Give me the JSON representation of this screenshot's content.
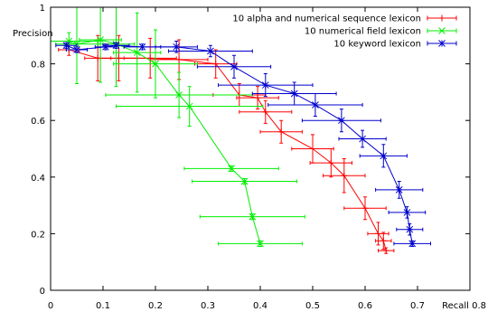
{
  "chart_data": {
    "type": "line",
    "xlabel": "Recall",
    "ylabel": "Precision",
    "xlim": [
      0,
      0.8
    ],
    "ylim": [
      0,
      1
    ],
    "xticks": [
      0,
      0.1,
      0.2,
      0.3,
      0.4,
      0.5,
      0.6,
      0.7,
      0.8
    ],
    "yticks": [
      0,
      0.2,
      0.4,
      0.6,
      0.8,
      1
    ],
    "xtick_labels": [
      "0",
      "0.1",
      "0.2",
      "0.3",
      "0.4",
      "0.5",
      "0.6",
      "0.7",
      "Recall 0.8"
    ],
    "ytick_labels": [
      "0",
      "0.2",
      "0.4",
      "0.6",
      "0.8",
      "1"
    ],
    "grid": false,
    "legend_position": "top-right",
    "series": [
      {
        "name": "10 alpha and numerical sequence lexicon",
        "color": "#ff0000",
        "marker": "plus",
        "points": [
          {
            "x": 0.035,
            "y": 0.85,
            "xerr": 0.02,
            "yerr": 0.02
          },
          {
            "x": 0.09,
            "y": 0.82,
            "xerr": 0.025,
            "yerr": 0.08
          },
          {
            "x": 0.13,
            "y": 0.82,
            "xerr": 0.035,
            "yerr": 0.08
          },
          {
            "x": 0.19,
            "y": 0.82,
            "xerr": 0.05,
            "yerr": 0.07
          },
          {
            "x": 0.245,
            "y": 0.815,
            "xerr": 0.055,
            "yerr": 0.07
          },
          {
            "x": 0.315,
            "y": 0.8,
            "xerr": 0.04,
            "yerr": 0.05
          },
          {
            "x": 0.36,
            "y": 0.69,
            "xerr": 0.05,
            "yerr": 0.04
          },
          {
            "x": 0.395,
            "y": 0.68,
            "xerr": 0.04,
            "yerr": 0.04
          },
          {
            "x": 0.41,
            "y": 0.63,
            "xerr": 0.05,
            "yerr": 0.04
          },
          {
            "x": 0.44,
            "y": 0.56,
            "xerr": 0.04,
            "yerr": 0.04
          },
          {
            "x": 0.5,
            "y": 0.5,
            "xerr": 0.04,
            "yerr": 0.05
          },
          {
            "x": 0.535,
            "y": 0.45,
            "xerr": 0.04,
            "yerr": 0.05
          },
          {
            "x": 0.56,
            "y": 0.405,
            "xerr": 0.04,
            "yerr": 0.06
          },
          {
            "x": 0.6,
            "y": 0.29,
            "xerr": 0.04,
            "yerr": 0.04
          },
          {
            "x": 0.625,
            "y": 0.2,
            "xerr": 0.02,
            "yerr": 0.04
          },
          {
            "x": 0.635,
            "y": 0.175,
            "xerr": 0.015,
            "yerr": 0.03
          },
          {
            "x": 0.64,
            "y": 0.14,
            "xerr": 0.015,
            "yerr": 0.01
          }
        ]
      },
      {
        "name": "10 numerical field lexicon",
        "color": "#00ee00",
        "marker": "cross",
        "points": [
          {
            "x": 0.035,
            "y": 0.88,
            "xerr": 0.06,
            "yerr": 0.03
          },
          {
            "x": 0.05,
            "y": 0.87,
            "xerr": 0.04,
            "yerr": 0.14
          },
          {
            "x": 0.095,
            "y": 0.885,
            "xerr": 0.04,
            "yerr": 0.15
          },
          {
            "x": 0.125,
            "y": 0.87,
            "xerr": 0.035,
            "yerr": 0.15
          },
          {
            "x": 0.165,
            "y": 0.84,
            "xerr": 0.045,
            "yerr": 0.14
          },
          {
            "x": 0.2,
            "y": 0.8,
            "xerr": 0.08,
            "yerr": 0.12
          },
          {
            "x": 0.245,
            "y": 0.69,
            "xerr": 0.14,
            "yerr": 0.08
          },
          {
            "x": 0.265,
            "y": 0.65,
            "xerr": 0.14,
            "yerr": 0.07
          },
          {
            "x": 0.345,
            "y": 0.43,
            "xerr": 0.09,
            "yerr": 0.01
          },
          {
            "x": 0.37,
            "y": 0.385,
            "xerr": 0.1,
            "yerr": 0.01
          },
          {
            "x": 0.385,
            "y": 0.26,
            "xerr": 0.1,
            "yerr": 0.01
          },
          {
            "x": 0.4,
            "y": 0.165,
            "xerr": 0.08,
            "yerr": 0.01
          }
        ]
      },
      {
        "name": "10 keyword lexicon",
        "color": "#0000cc",
        "marker": "star",
        "points": [
          {
            "x": 0.03,
            "y": 0.865,
            "xerr": 0.02,
            "yerr": 0.01
          },
          {
            "x": 0.05,
            "y": 0.85,
            "xerr": 0.02,
            "yerr": 0.01
          },
          {
            "x": 0.105,
            "y": 0.86,
            "xerr": 0.02,
            "yerr": 0.01
          },
          {
            "x": 0.125,
            "y": 0.865,
            "xerr": 0.025,
            "yerr": 0.01
          },
          {
            "x": 0.175,
            "y": 0.86,
            "xerr": 0.035,
            "yerr": 0.01
          },
          {
            "x": 0.24,
            "y": 0.86,
            "xerr": 0.04,
            "yerr": 0.02
          },
          {
            "x": 0.305,
            "y": 0.845,
            "xerr": 0.08,
            "yerr": 0.02
          },
          {
            "x": 0.35,
            "y": 0.79,
            "xerr": 0.07,
            "yerr": 0.04
          },
          {
            "x": 0.41,
            "y": 0.725,
            "xerr": 0.09,
            "yerr": 0.04
          },
          {
            "x": 0.465,
            "y": 0.695,
            "xerr": 0.08,
            "yerr": 0.04
          },
          {
            "x": 0.505,
            "y": 0.655,
            "xerr": 0.09,
            "yerr": 0.04
          },
          {
            "x": 0.555,
            "y": 0.6,
            "xerr": 0.075,
            "yerr": 0.04
          },
          {
            "x": 0.595,
            "y": 0.535,
            "xerr": 0.045,
            "yerr": 0.03
          },
          {
            "x": 0.635,
            "y": 0.475,
            "xerr": 0.045,
            "yerr": 0.04
          },
          {
            "x": 0.665,
            "y": 0.355,
            "xerr": 0.045,
            "yerr": 0.03
          },
          {
            "x": 0.68,
            "y": 0.275,
            "xerr": 0.035,
            "yerr": 0.02
          },
          {
            "x": 0.685,
            "y": 0.215,
            "xerr": 0.025,
            "yerr": 0.02
          },
          {
            "x": 0.69,
            "y": 0.165,
            "xerr": 0.035,
            "yerr": 0.01
          }
        ]
      }
    ]
  }
}
